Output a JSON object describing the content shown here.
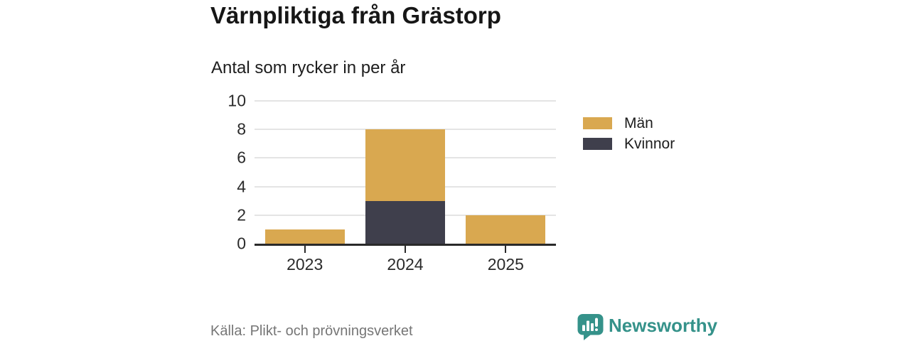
{
  "header": {
    "title": "Värnpliktiga från Grästorp",
    "subtitle": "Antal som rycker in per år"
  },
  "chart_data": {
    "type": "bar",
    "stacked": true,
    "title": "Värnpliktiga från Grästorp",
    "subtitle": "Antal som rycker in per år",
    "categories": [
      "2023",
      "2024",
      "2025"
    ],
    "series": [
      {
        "name": "Män",
        "key": "men",
        "color": "#D9A850",
        "values": [
          1,
          5,
          2
        ]
      },
      {
        "name": "Kvinnor",
        "key": "women",
        "color": "#3F3F4C",
        "values": [
          0,
          3,
          0
        ]
      }
    ],
    "stack_order_bottom_to_top": [
      "Kvinnor",
      "Män"
    ],
    "totals": [
      1,
      8,
      2
    ],
    "xlabel": "",
    "ylabel": "",
    "ylim": [
      0,
      10
    ],
    "yticks": [
      0,
      2,
      4,
      6,
      8,
      10
    ],
    "grid": "horizontal",
    "legend_position": "right"
  },
  "footer": {
    "source": "Källa: Plikt- och prövningsverket",
    "brand": "Newsworthy"
  },
  "icons": {
    "brand_logo": "newsworthy-speech-bubble-bar-chart-icon"
  },
  "colors": {
    "men": "#D9A850",
    "women": "#3F3F4C",
    "axis": "#2A2A2A",
    "gridline": "#E4E4E4",
    "text": "#2B2B2B",
    "source_text": "#767676",
    "brand_teal": "#35928A",
    "background": "#FFFFFF"
  }
}
